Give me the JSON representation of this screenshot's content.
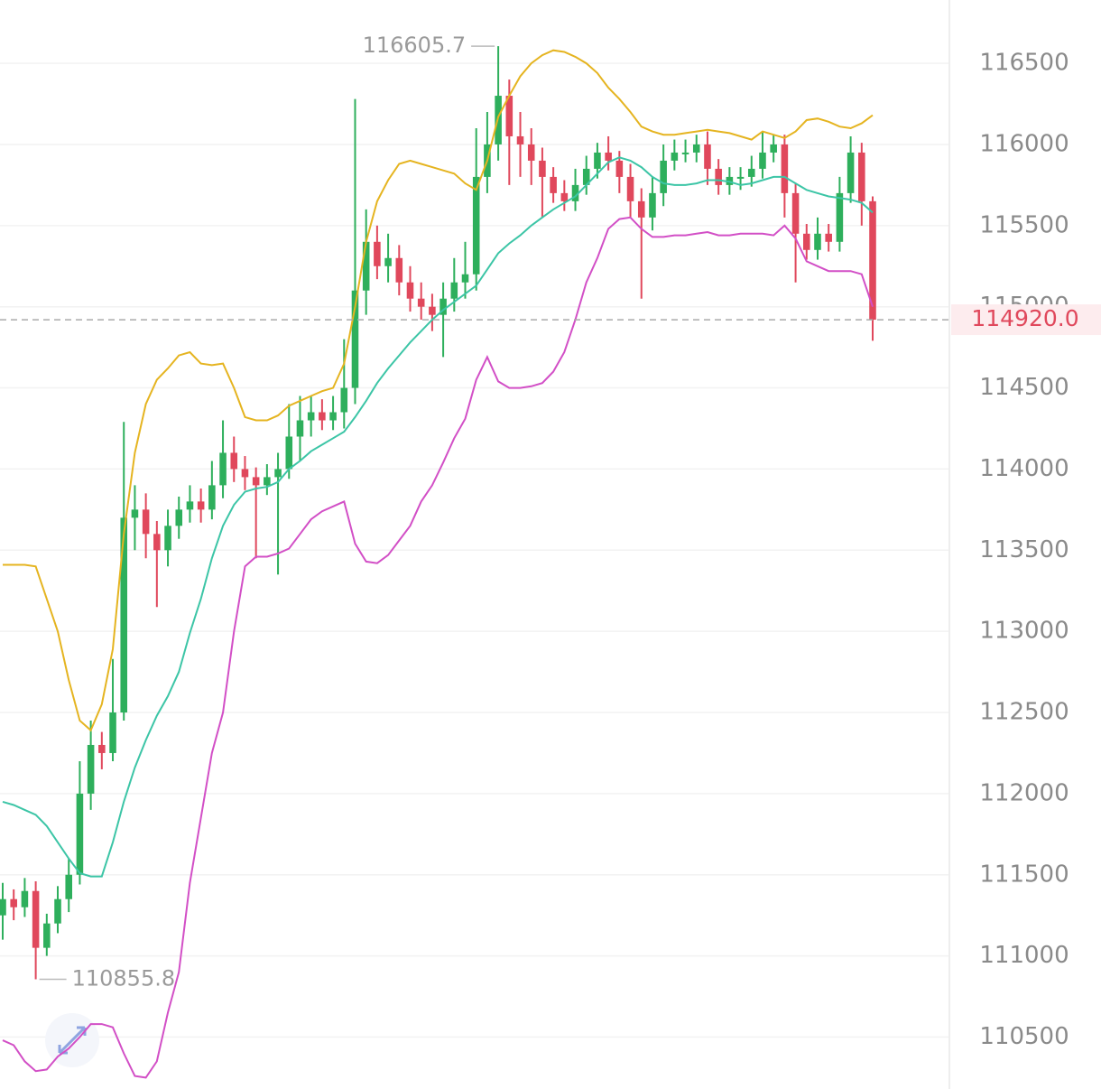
{
  "chart_data": {
    "type": "candlestick",
    "up_color": "#2eaf5c",
    "down_color": "#e0485c",
    "open": [
      111250,
      111350,
      111300,
      111400,
      111050,
      111200,
      111350,
      111500,
      112000,
      112300,
      112250,
      112500,
      113700,
      113750,
      113600,
      113500,
      113650,
      113750,
      113800,
      113750,
      113900,
      114100,
      114000,
      113950,
      113900,
      113950,
      114000,
      114200,
      114300,
      114350,
      114300,
      114350,
      114500,
      115100,
      115400,
      115250,
      115300,
      115150,
      115050,
      115000,
      114950,
      115050,
      115150,
      115200,
      115800,
      116000,
      116300,
      116050,
      116000,
      115900,
      115800,
      115700,
      115650,
      115750,
      115850,
      115950,
      115900,
      115800,
      115650,
      115550,
      115700,
      115900,
      115950,
      115950,
      116000,
      115850,
      115750,
      115800,
      115800,
      115850,
      115950,
      116000,
      115700,
      115450,
      115350,
      115450,
      115400,
      115700,
      115950,
      115650
    ],
    "high": [
      111450,
      111410,
      111480,
      111460,
      111260,
      111430,
      111600,
      112200,
      112450,
      112380,
      112830,
      114290,
      113900,
      113850,
      113680,
      113750,
      113830,
      113900,
      113880,
      114050,
      114300,
      114200,
      114080,
      114010,
      114030,
      114100,
      114400,
      114450,
      114450,
      114430,
      114450,
      114800,
      116280,
      115600,
      115500,
      115450,
      115380,
      115250,
      115150,
      115080,
      115150,
      115300,
      115400,
      116100,
      116200,
      116605.7,
      116400,
      116200,
      116100,
      115980,
      115860,
      115780,
      115850,
      115930,
      116010,
      116050,
      115960,
      115880,
      115730,
      115800,
      116000,
      116030,
      116030,
      116060,
      116080,
      115910,
      115860,
      115860,
      115930,
      116080,
      116060,
      116060,
      115760,
      115510,
      115550,
      115510,
      115800,
      116050,
      116010,
      115680
    ],
    "low": [
      111100,
      111220,
      111240,
      110855.8,
      111000,
      111140,
      111270,
      111440,
      111900,
      112150,
      112200,
      112450,
      113500,
      113450,
      113150,
      113400,
      113570,
      113670,
      113670,
      113690,
      113820,
      113920,
      113870,
      113450,
      113840,
      113350,
      113940,
      114050,
      114200,
      114240,
      114240,
      114250,
      114400,
      114950,
      115170,
      115150,
      115070,
      114970,
      114920,
      114850,
      114690,
      114970,
      115050,
      115100,
      115700,
      115900,
      115750,
      115800,
      115750,
      115550,
      115640,
      115590,
      115590,
      115690,
      115790,
      115840,
      115700,
      115550,
      115050,
      115470,
      115620,
      115840,
      115890,
      115890,
      115750,
      115690,
      115690,
      115720,
      115740,
      115790,
      115890,
      115550,
      115150,
      115290,
      115290,
      115340,
      115340,
      115640,
      115500,
      114790
    ],
    "close": [
      111350,
      111300,
      111400,
      111050,
      111200,
      111350,
      111500,
      112000,
      112300,
      112250,
      112500,
      113700,
      113750,
      113600,
      113500,
      113650,
      113750,
      113800,
      113750,
      113900,
      114100,
      114000,
      113950,
      113900,
      113950,
      114000,
      114200,
      114300,
      114350,
      114300,
      114350,
      114500,
      115100,
      115400,
      115250,
      115300,
      115150,
      115050,
      115000,
      114950,
      115050,
      115150,
      115200,
      115800,
      116000,
      116300,
      116050,
      116000,
      115900,
      115800,
      115700,
      115650,
      115750,
      115850,
      115950,
      115900,
      115800,
      115650,
      115550,
      115700,
      115900,
      115950,
      115950,
      116000,
      115850,
      115750,
      115800,
      115800,
      115850,
      115950,
      116000,
      115700,
      115450,
      115350,
      115450,
      115400,
      115700,
      115950,
      115650,
      114920
    ],
    "bands": [
      {
        "color": "#e5b420",
        "values": [
          113410,
          113410,
          113410,
          113400,
          113200,
          113000,
          112700,
          112450,
          112390,
          112550,
          112890,
          113600,
          114100,
          114400,
          114550,
          114620,
          114700,
          114720,
          114650,
          114640,
          114650,
          114500,
          114320,
          114300,
          114300,
          114330,
          114390,
          114420,
          114450,
          114480,
          114500,
          114650,
          115000,
          115400,
          115650,
          115780,
          115880,
          115900,
          115880,
          115860,
          115840,
          115820,
          115760,
          115720,
          115900,
          116170,
          116300,
          116420,
          116500,
          116550,
          116580,
          116570,
          116540,
          116500,
          116440,
          116350,
          116280,
          116200,
          116110,
          116080,
          116060,
          116060,
          116070,
          116080,
          116090,
          116080,
          116070,
          116050,
          116030,
          116080,
          116060,
          116040,
          116080,
          116150,
          116160,
          116140,
          116110,
          116100,
          116130,
          116180
        ]
      },
      {
        "color": "#3cc5a6",
        "values": [
          111950,
          111930,
          111900,
          111870,
          111800,
          111700,
          111600,
          111510,
          111490,
          111490,
          111700,
          111950,
          112160,
          112330,
          112480,
          112600,
          112750,
          112990,
          113200,
          113450,
          113650,
          113780,
          113860,
          113880,
          113890,
          113920,
          114000,
          114050,
          114110,
          114150,
          114190,
          114230,
          114320,
          114420,
          114530,
          114620,
          114700,
          114780,
          114850,
          114920,
          114980,
          115030,
          115080,
          115130,
          115230,
          115330,
          115390,
          115440,
          115500,
          115550,
          115600,
          115640,
          115680,
          115750,
          115820,
          115890,
          115920,
          115900,
          115860,
          115800,
          115760,
          115750,
          115750,
          115760,
          115780,
          115780,
          115770,
          115750,
          115760,
          115780,
          115800,
          115800,
          115760,
          115720,
          115700,
          115680,
          115670,
          115660,
          115640,
          115580
        ]
      },
      {
        "color": "#d24fc6",
        "values": [
          110480,
          110450,
          110350,
          110290,
          110300,
          110380,
          110430,
          110500,
          110580,
          110580,
          110560,
          110400,
          110260,
          110250,
          110350,
          110650,
          110900,
          111450,
          111850,
          112250,
          112500,
          113000,
          113400,
          113460,
          113460,
          113480,
          113510,
          113600,
          113690,
          113740,
          113770,
          113800,
          113540,
          113430,
          113420,
          113470,
          113560,
          113650,
          113800,
          113900,
          114040,
          114190,
          114310,
          114550,
          114690,
          114540,
          114500,
          114500,
          114510,
          114530,
          114600,
          114720,
          114920,
          115150,
          115300,
          115480,
          115540,
          115550,
          115480,
          115430,
          115430,
          115440,
          115440,
          115450,
          115460,
          115440,
          115440,
          115450,
          115450,
          115450,
          115440,
          115500,
          115420,
          115280,
          115250,
          115220,
          115220,
          115220,
          115200,
          115000
        ]
      }
    ],
    "ylim": [
      110180,
      116890
    ],
    "yticks": [
      110500,
      111000,
      111500,
      112000,
      112500,
      113000,
      113500,
      114000,
      114500,
      115000,
      115500,
      116000,
      116500
    ],
    "grid": true,
    "high_label": {
      "value": 116605.7,
      "label": "116605.7"
    },
    "low_label": {
      "value": 110855.8,
      "label": "110855.8"
    },
    "last_price": {
      "value": 114920,
      "label": "114920.0"
    }
  }
}
